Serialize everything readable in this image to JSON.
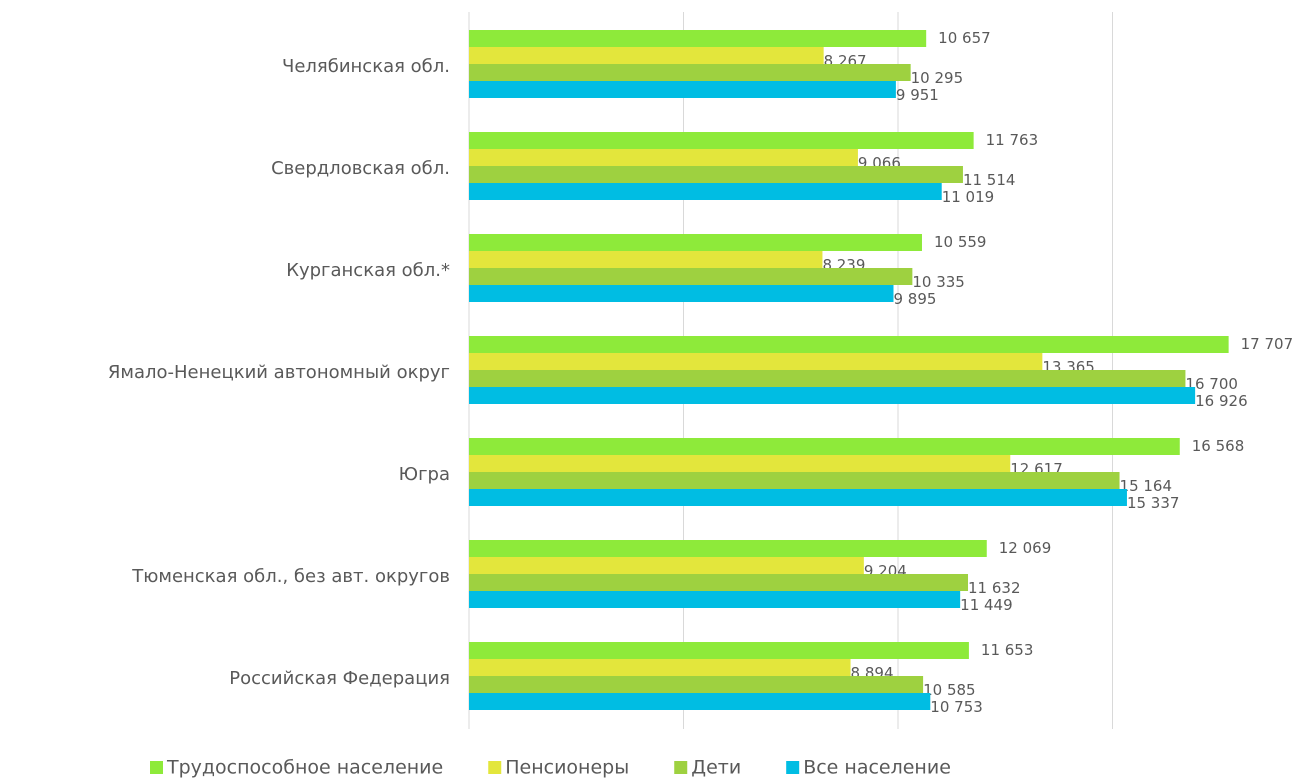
{
  "chart_data": {
    "type": "hbar",
    "categories": [
      "Челябинская обл.",
      "Свердловская обл.",
      "Курганская обл.*",
      "Ямало-Ненецкий автономный округ",
      "Югра",
      "Тюменская обл., без авт. округов",
      "Российская Федерация"
    ],
    "series": [
      {
        "name": "Трудоспособное население",
        "color": "#8eea3a",
        "values": [
          10657,
          11763,
          10559,
          17707,
          16568,
          12069,
          11653
        ],
        "value_labels": [
          "10 657",
          "11 763",
          "10 559",
          "17 707",
          "16 568",
          "12 069",
          "11 653"
        ]
      },
      {
        "name": "Пенсионеры",
        "color": "#e3e63c",
        "values": [
          8267,
          9066,
          8239,
          13365,
          12617,
          9204,
          8894
        ],
        "value_labels": [
          "8 267",
          "9 066",
          "8 239",
          "13 365",
          "12 617",
          "9 204",
          "8 894"
        ]
      },
      {
        "name": "Дети",
        "color": "#9ed140",
        "values": [
          10295,
          11514,
          10335,
          16700,
          15164,
          11632,
          10585
        ],
        "value_labels": [
          "10 295",
          "11 514",
          "10 335",
          "16 700",
          "15 164",
          "11 632",
          "10 585"
        ]
      },
      {
        "name": "Все население",
        "color": "#00bde3",
        "values": [
          9951,
          11019,
          9895,
          16926,
          15337,
          11449,
          10753
        ],
        "value_labels": [
          "9 951",
          "11 019",
          "9 895",
          "16 926",
          "15 337",
          "11 449",
          "10 753"
        ]
      }
    ],
    "xlim": [
      0,
      20000
    ],
    "xticks": [
      0,
      5000,
      10000,
      15000
    ],
    "grid": true,
    "legend": "bottom"
  }
}
